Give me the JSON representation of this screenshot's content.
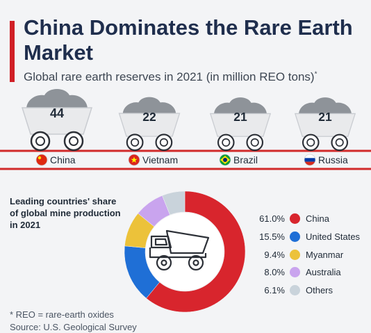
{
  "title": "China Dominates the Rare Earth Market",
  "subtitle": "Global rare earth reserves in 2021 (in million REO tons)",
  "subtitle_mark": "*",
  "colors": {
    "accent": "#d01f26",
    "cart": "#e9eaec",
    "ore": "#8e9399",
    "rail": "#d12a2a"
  },
  "chart_data": [
    {
      "type": "bar",
      "title": "Global rare earth reserves in 2021 (in million REO tons)",
      "categories": [
        "China",
        "Vietnam",
        "Brazil",
        "Russia"
      ],
      "values": [
        44,
        22,
        21,
        21
      ],
      "flags": [
        "china-flag-icon",
        "vietnam-flag-icon",
        "brazil-flag-icon",
        "russia-flag-icon"
      ]
    },
    {
      "type": "pie",
      "title": "Leading countries' share of global mine production in 2021",
      "labels": [
        "China",
        "United States",
        "Myanmar",
        "Australia",
        "Others"
      ],
      "values": [
        61.0,
        15.5,
        9.4,
        8.0,
        6.1
      ],
      "display": [
        "61.0%",
        "15.5%",
        "9.4%",
        "8.0%",
        "6.1%"
      ],
      "colors": [
        "#d8252d",
        "#1f6fd6",
        "#ecc23a",
        "#c9a4ee",
        "#c9d3db"
      ],
      "center_icon": "dump-truck-icon"
    }
  ],
  "donut_label": "Leading countries' share of global mine production in 2021",
  "footnote": "* REO = rare-earth oxides",
  "source": "Source: U.S. Geological Survey"
}
